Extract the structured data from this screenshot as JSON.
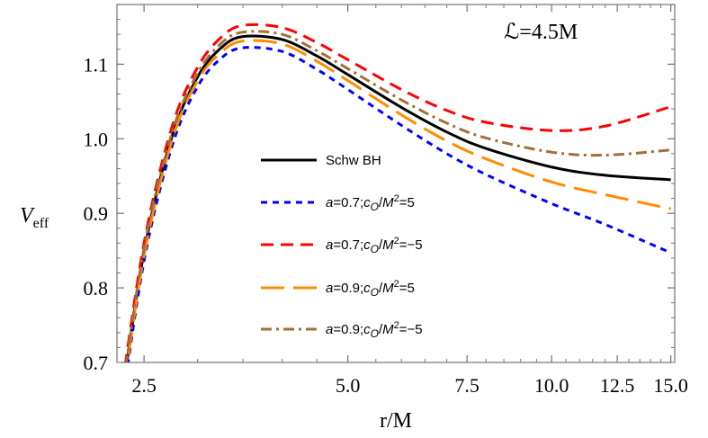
{
  "chart_data": {
    "type": "line",
    "title": "",
    "xlabel": "r/M",
    "ylabel": "V",
    "ylabel_sub": "eff",
    "annotation": "ℒ=4.5M",
    "xscale": "log",
    "xlim": [
      2.28,
      15.2
    ],
    "ylim": [
      0.7,
      1.18
    ],
    "xticks": [
      2.5,
      5.0,
      7.5,
      10.0,
      12.5,
      15.0
    ],
    "xtick_labels": [
      "2.5",
      "5.0",
      "7.5",
      "10.0",
      "12.5",
      "15.0"
    ],
    "yticks": [
      0.7,
      0.8,
      0.9,
      1.0,
      1.1
    ],
    "ytick_labels": [
      "0.7",
      "0.8",
      "0.9",
      "1.0",
      "1.1"
    ],
    "grid": false,
    "legend_placement": "center",
    "x": [
      2.3,
      2.5,
      2.75,
      3,
      3.25,
      3.5,
      4,
      4.5,
      5,
      6,
      7,
      8,
      10,
      12,
      15
    ],
    "series": [
      {
        "name": "Schw BH",
        "color": "#000000",
        "style": "solid",
        "values": [
          0.63,
          0.848,
          1.003,
          1.083,
          1.122,
          1.137,
          1.133,
          1.111,
          1.086,
          1.042,
          1.009,
          0.987,
          0.962,
          0.951,
          0.945
        ]
      },
      {
        "name": "a=0.7;cO/M2=5",
        "label_parts": [
          "a",
          "=0.7;",
          "c",
          "O",
          "/",
          "M",
          "2",
          "=5"
        ],
        "color": "#0000ff",
        "style": "dotted",
        "values": [
          0.618,
          0.836,
          0.99,
          1.07,
          1.108,
          1.122,
          1.117,
          1.093,
          1.066,
          1.018,
          0.98,
          0.952,
          0.913,
          0.885,
          0.847
        ]
      },
      {
        "name": "a=0.7;cO/M2=-5",
        "label_parts": [
          "a",
          "=0.7;",
          "c",
          "O",
          "/",
          "M",
          "2",
          "=−5"
        ],
        "color": "#ff0000",
        "style": "dashed",
        "values": [
          0.642,
          0.86,
          1.016,
          1.096,
          1.136,
          1.152,
          1.149,
          1.129,
          1.106,
          1.066,
          1.038,
          1.022,
          1.011,
          1.017,
          1.043
        ]
      },
      {
        "name": "a=0.9;cO/M2=5",
        "label_parts": [
          "a",
          "=0.9;",
          "c",
          "O",
          "/",
          "M",
          "2",
          "=5"
        ],
        "color": "#ff8c00",
        "style": "long-dashed",
        "values": [
          0.625,
          0.843,
          0.998,
          1.078,
          1.116,
          1.131,
          1.127,
          1.104,
          1.078,
          1.032,
          0.997,
          0.973,
          0.942,
          0.925,
          0.906
        ]
      },
      {
        "name": "a=0.9;cO/M2=-5",
        "label_parts": [
          "a",
          "=0.9;",
          "c",
          "O",
          "/",
          "M",
          "2",
          "=−5"
        ],
        "color": "#a0703a",
        "style": "dash-dot",
        "values": [
          0.635,
          0.853,
          1.008,
          1.088,
          1.128,
          1.143,
          1.14,
          1.118,
          1.094,
          1.052,
          1.021,
          1.001,
          0.982,
          0.978,
          0.985
        ]
      }
    ]
  }
}
